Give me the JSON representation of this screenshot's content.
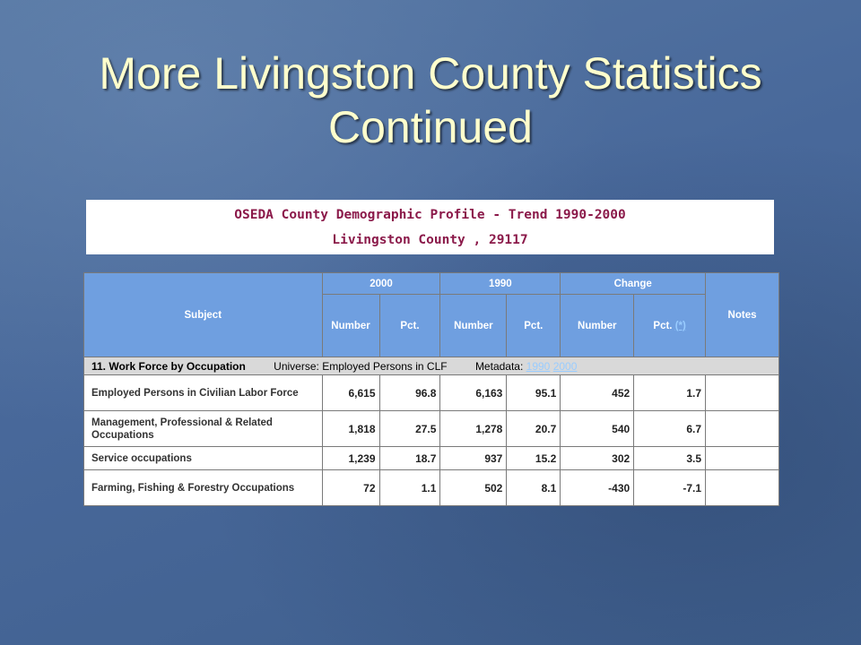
{
  "slide": {
    "title_line1": "More Livingston County Statistics",
    "title_line2": "Continued"
  },
  "profile": {
    "line1": "OSEDA County Demographic Profile - Trend 1990-2000",
    "line2": "Livingston County , 29117"
  },
  "table": {
    "headers": {
      "subject": "Subject",
      "year_2000": "2000",
      "year_1990": "1990",
      "change": "Change",
      "notes": "Notes",
      "number": "Number",
      "pct": "Pct.",
      "pct_change_link": "(*)"
    },
    "section": {
      "title": "11. Work Force by Occupation",
      "universe": "Universe: Employed Persons in CLF",
      "metadata_label": "Metadata:",
      "link_1990": "1990",
      "link_2000": "2000"
    },
    "rows": [
      {
        "subject": "Employed Persons in Civilian Labor Force",
        "n2000": "6,615",
        "p2000": "96.8",
        "n1990": "6,163",
        "p1990": "95.1",
        "nchg": "452",
        "pchg": "1.7",
        "notes": ""
      },
      {
        "subject": "Management, Professional & Related Occupations",
        "n2000": "1,818",
        "p2000": "27.5",
        "n1990": "1,278",
        "p1990": "20.7",
        "nchg": "540",
        "pchg": "6.7",
        "notes": ""
      },
      {
        "subject": "Service occupations",
        "n2000": "1,239",
        "p2000": "18.7",
        "n1990": "937",
        "p1990": "15.2",
        "nchg": "302",
        "pchg": "3.5",
        "notes": ""
      },
      {
        "subject": "Farming, Fishing & Forestry Occupations",
        "n2000": "72",
        "p2000": "1.1",
        "n1990": "502",
        "p1990": "8.1",
        "nchg": "-430",
        "pchg": "-7.1",
        "notes": ""
      }
    ]
  }
}
